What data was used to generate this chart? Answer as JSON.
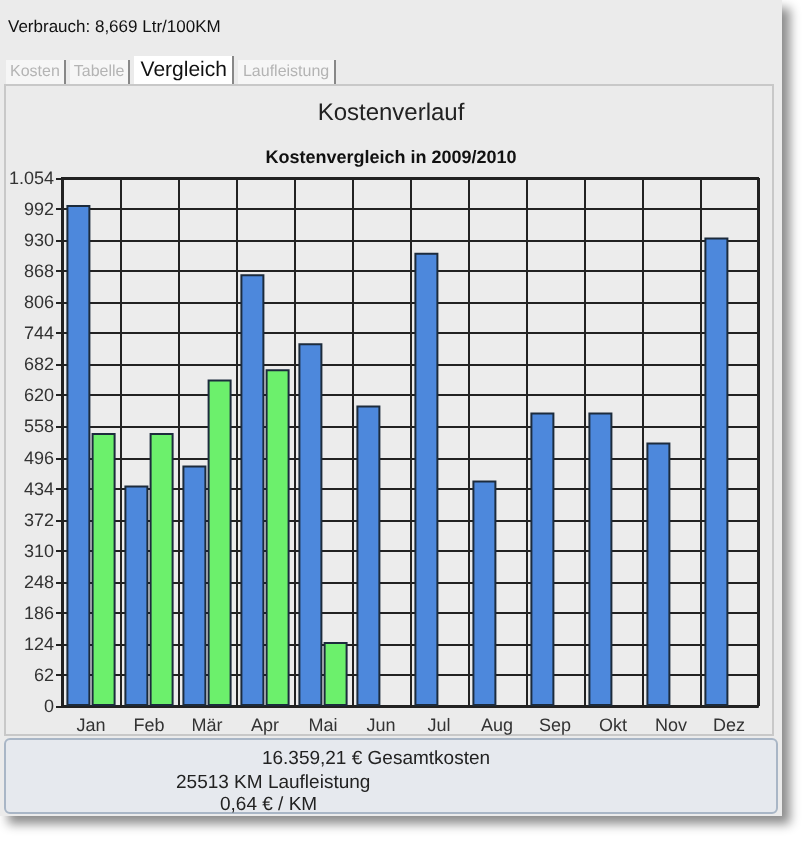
{
  "chart_data": {
    "type": "bar",
    "title": "Kostenverlauf",
    "subtitle": "Kostenvergleich in 2009/2010",
    "categories": [
      "Jan",
      "Feb",
      "Mär",
      "Apr",
      "Mai",
      "Jun",
      "Jul",
      "Aug",
      "Sep",
      "Okt",
      "Nov",
      "Dez"
    ],
    "series": [
      {
        "color": "#4d88dc",
        "values": [
          1000,
          440,
          480,
          862,
          724,
          600,
          905,
          450,
          586,
          586,
          526,
          935
        ]
      },
      {
        "color": "#6cf06c",
        "values": [
          545,
          545,
          652,
          672,
          128,
          null,
          null,
          null,
          null,
          null,
          null,
          null
        ]
      }
    ],
    "ylim": [
      0,
      1054
    ],
    "yticks": [
      0,
      62,
      124,
      186,
      248,
      310,
      372,
      434,
      496,
      558,
      620,
      682,
      744,
      806,
      868,
      930,
      992,
      {
        "value": 1054,
        "label": "1.054"
      }
    ],
    "grid": true,
    "annotations": [
      "Verbrauch: 8,669 Ltr/100KM",
      "Kosten",
      "Tabelle",
      "Vergleich",
      "Laufleistung",
      "16.359,21 € Gesamtkosten",
      "25513 KM Laufleistung",
      "0,64 € / KM"
    ]
  }
}
